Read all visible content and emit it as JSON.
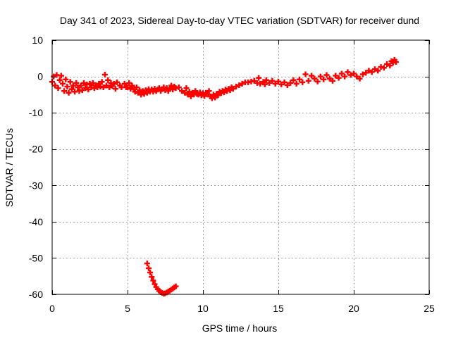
{
  "chart_data": {
    "type": "scatter",
    "title": "Day 341 of 2023, Sidereal Day-to-day VTEC variation (SDTVAR) for receiver dund",
    "xlabel": "GPS time / hours",
    "ylabel": "SDTVAR / TECUs",
    "xlim": [
      0,
      25
    ],
    "ylim": [
      -60,
      10
    ],
    "xticks": [
      0,
      5,
      10,
      15,
      20,
      25
    ],
    "yticks": [
      10,
      0,
      -10,
      -20,
      -30,
      -40,
      -50,
      -60
    ],
    "grid": true,
    "legend": "none",
    "marker": "plus",
    "series": [
      {
        "name": "main",
        "color": "#ff0000",
        "points": [
          [
            0.0,
            -1.5
          ],
          [
            0.1,
            0.0
          ],
          [
            0.2,
            -2.5
          ],
          [
            0.3,
            0.4
          ],
          [
            0.4,
            -3.2
          ],
          [
            0.5,
            -1.0
          ],
          [
            0.6,
            0.2
          ],
          [
            0.7,
            -2.0
          ],
          [
            0.8,
            -4.0
          ],
          [
            0.9,
            -0.8
          ],
          [
            1.0,
            -2.8
          ],
          [
            1.1,
            -4.5
          ],
          [
            1.2,
            -1.5
          ],
          [
            1.3,
            -3.5
          ],
          [
            1.4,
            -2.5
          ],
          [
            1.5,
            -4.2
          ],
          [
            1.6,
            -1.8
          ],
          [
            1.7,
            -3.0
          ],
          [
            1.8,
            -4.0
          ],
          [
            1.9,
            -2.5
          ],
          [
            2.0,
            -3.8
          ],
          [
            2.1,
            -1.8
          ],
          [
            2.2,
            -3.2
          ],
          [
            2.3,
            -2.2
          ],
          [
            2.4,
            -3.6
          ],
          [
            2.5,
            -2.0
          ],
          [
            2.6,
            -3.0
          ],
          [
            2.7,
            -1.8
          ],
          [
            2.8,
            -3.2
          ],
          [
            2.9,
            -2.4
          ],
          [
            3.0,
            -3.0
          ],
          [
            3.1,
            -2.0
          ],
          [
            3.2,
            -2.8
          ],
          [
            3.3,
            -1.5
          ],
          [
            3.4,
            -3.0
          ],
          [
            3.5,
            0.5
          ],
          [
            3.6,
            -2.5
          ],
          [
            3.7,
            -1.0
          ],
          [
            3.8,
            -3.0
          ],
          [
            3.9,
            -1.8
          ],
          [
            4.0,
            -2.6
          ],
          [
            4.1,
            -2.0
          ],
          [
            4.2,
            -3.4
          ],
          [
            4.3,
            -1.6
          ],
          [
            4.5,
            -2.5
          ],
          [
            4.6,
            -3.0
          ],
          [
            4.8,
            -2.0
          ],
          [
            4.9,
            -3.0
          ],
          [
            5.0,
            -3.0
          ],
          [
            5.1,
            -1.8
          ],
          [
            5.2,
            -3.4
          ],
          [
            5.3,
            -2.5
          ],
          [
            5.4,
            -3.5
          ],
          [
            5.5,
            -4.2
          ],
          [
            5.6,
            -3.0
          ],
          [
            5.7,
            -4.5
          ],
          [
            5.8,
            -3.8
          ],
          [
            5.9,
            -5.0
          ],
          [
            6.0,
            -4.0
          ],
          [
            6.1,
            -4.8
          ],
          [
            6.2,
            -3.8
          ],
          [
            6.3,
            -4.5
          ],
          [
            6.4,
            -3.5
          ],
          [
            6.5,
            -4.2
          ],
          [
            6.6,
            -3.6
          ],
          [
            6.7,
            -4.2
          ],
          [
            6.8,
            -3.4
          ],
          [
            6.9,
            -4.0
          ],
          [
            7.0,
            -3.6
          ],
          [
            7.1,
            -3.2
          ],
          [
            7.2,
            -4.0
          ],
          [
            7.3,
            -3.5
          ],
          [
            7.4,
            -3.0
          ],
          [
            7.5,
            -3.8
          ],
          [
            7.6,
            -3.2
          ],
          [
            7.7,
            -4.0
          ],
          [
            7.8,
            -3.4
          ],
          [
            7.9,
            -2.5
          ],
          [
            8.0,
            -3.6
          ],
          [
            8.1,
            -2.8
          ],
          [
            8.2,
            -3.2
          ],
          [
            8.4,
            -3.0
          ],
          [
            8.6,
            -4.0
          ],
          [
            8.8,
            -4.5
          ],
          [
            8.9,
            -3.2
          ],
          [
            9.0,
            -5.0
          ],
          [
            9.1,
            -4.2
          ],
          [
            9.2,
            -5.5
          ],
          [
            9.3,
            -4.5
          ],
          [
            9.4,
            -5.0
          ],
          [
            9.5,
            -4.0
          ],
          [
            9.6,
            -4.8
          ],
          [
            9.7,
            -5.0
          ],
          [
            9.8,
            -4.4
          ],
          [
            9.9,
            -5.2
          ],
          [
            10.0,
            -4.6
          ],
          [
            10.1,
            -5.4
          ],
          [
            10.2,
            -4.5
          ],
          [
            10.3,
            -5.0
          ],
          [
            10.4,
            -4.0
          ],
          [
            10.5,
            -5.5
          ],
          [
            10.6,
            -6.0
          ],
          [
            10.7,
            -5.0
          ],
          [
            10.8,
            -5.8
          ],
          [
            10.9,
            -4.8
          ],
          [
            11.0,
            -5.2
          ],
          [
            11.1,
            -4.2
          ],
          [
            11.2,
            -4.6
          ],
          [
            11.3,
            -4.0
          ],
          [
            11.4,
            -4.4
          ],
          [
            11.5,
            -3.6
          ],
          [
            11.6,
            -4.0
          ],
          [
            11.7,
            -3.4
          ],
          [
            11.8,
            -3.8
          ],
          [
            11.9,
            -3.0
          ],
          [
            12.0,
            -3.4
          ],
          [
            12.2,
            -2.8
          ],
          [
            12.4,
            -2.4
          ],
          [
            12.6,
            -2.0
          ],
          [
            12.8,
            -1.6
          ],
          [
            13.0,
            -1.6
          ],
          [
            13.2,
            -1.4
          ],
          [
            13.4,
            -1.2
          ],
          [
            13.6,
            -1.8
          ],
          [
            13.7,
            -0.4
          ],
          [
            13.8,
            -2.0
          ],
          [
            14.0,
            -1.5
          ],
          [
            14.1,
            -2.2
          ],
          [
            14.2,
            -1.0
          ],
          [
            14.4,
            -1.8
          ],
          [
            14.6,
            -1.2
          ],
          [
            14.8,
            -2.0
          ],
          [
            15.0,
            -1.4
          ],
          [
            15.2,
            -2.2
          ],
          [
            15.4,
            -1.6
          ],
          [
            15.6,
            -2.4
          ],
          [
            15.8,
            -1.8
          ],
          [
            16.0,
            -1.0
          ],
          [
            16.2,
            -2.0
          ],
          [
            16.4,
            -0.8
          ],
          [
            16.6,
            -1.6
          ],
          [
            16.8,
            0.6
          ],
          [
            17.0,
            -1.2
          ],
          [
            17.2,
            0.2
          ],
          [
            17.4,
            -0.6
          ],
          [
            17.6,
            -1.4
          ],
          [
            17.8,
            0.0
          ],
          [
            18.0,
            -0.8
          ],
          [
            18.2,
            0.4
          ],
          [
            18.4,
            -0.6
          ],
          [
            18.6,
            -1.2
          ],
          [
            18.8,
            0.2
          ],
          [
            19.0,
            -0.4
          ],
          [
            19.2,
            0.8
          ],
          [
            19.4,
            0.0
          ],
          [
            19.6,
            1.2
          ],
          [
            19.8,
            0.4
          ],
          [
            20.0,
            0.8
          ],
          [
            20.2,
            0.0
          ],
          [
            20.4,
            -0.6
          ],
          [
            20.6,
            0.6
          ],
          [
            20.8,
            1.0
          ],
          [
            21.0,
            1.6
          ],
          [
            21.2,
            1.2
          ],
          [
            21.4,
            2.0
          ],
          [
            21.6,
            1.6
          ],
          [
            21.8,
            2.6
          ],
          [
            22.0,
            2.4
          ],
          [
            22.2,
            3.4
          ],
          [
            22.4,
            3.0
          ],
          [
            22.5,
            4.2
          ],
          [
            22.6,
            3.8
          ],
          [
            22.7,
            4.6
          ],
          [
            22.8,
            4.0
          ]
        ]
      },
      {
        "name": "dip",
        "color": "#ff0000",
        "points": [
          [
            6.3,
            -51.5
          ],
          [
            6.4,
            -52.8
          ],
          [
            6.5,
            -54.0
          ],
          [
            6.6,
            -55.2
          ],
          [
            6.7,
            -56.2
          ],
          [
            6.8,
            -57.2
          ],
          [
            6.9,
            -58.0
          ],
          [
            7.0,
            -58.6
          ],
          [
            7.1,
            -59.0
          ],
          [
            7.2,
            -59.4
          ],
          [
            7.3,
            -59.6
          ],
          [
            7.4,
            -59.8
          ],
          [
            7.5,
            -59.7
          ],
          [
            7.6,
            -59.5
          ],
          [
            7.7,
            -59.2
          ],
          [
            7.8,
            -59.0
          ],
          [
            7.9,
            -58.7
          ],
          [
            8.0,
            -58.4
          ],
          [
            8.1,
            -58.1
          ],
          [
            8.2,
            -57.8
          ]
        ]
      }
    ]
  }
}
